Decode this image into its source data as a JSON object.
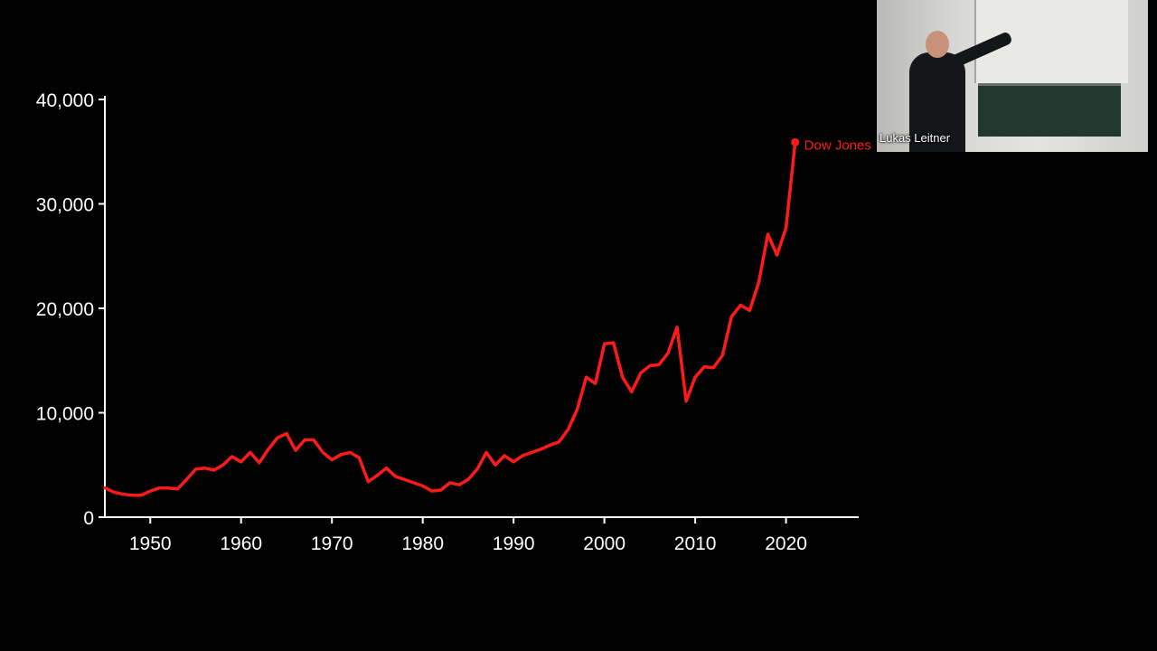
{
  "chart_data": {
    "type": "line",
    "title": "",
    "xlabel": "",
    "ylabel": "",
    "xlim": [
      1945,
      2028
    ],
    "ylim": [
      0,
      40000
    ],
    "x_ticks": [
      1950,
      1960,
      1970,
      1980,
      1990,
      2000,
      2010,
      2020
    ],
    "x_tick_labels": [
      "1950",
      "1960",
      "1970",
      "1980",
      "1990",
      "2000",
      "2010",
      "2020"
    ],
    "y_ticks": [
      0,
      10000,
      20000,
      30000,
      40000
    ],
    "y_tick_labels": [
      "0",
      "10,000",
      "20,000",
      "30,000",
      "40,000"
    ],
    "grid": false,
    "series": [
      {
        "name": "Dow Jones",
        "color": "#ff1a1a",
        "x": [
          1945,
          1946,
          1947,
          1948,
          1949,
          1950,
          1951,
          1952,
          1953,
          1954,
          1955,
          1956,
          1957,
          1958,
          1959,
          1960,
          1961,
          1962,
          1963,
          1964,
          1965,
          1966,
          1967,
          1968,
          1969,
          1970,
          1971,
          1972,
          1973,
          1974,
          1975,
          1976,
          1977,
          1978,
          1979,
          1980,
          1981,
          1982,
          1983,
          1984,
          1985,
          1986,
          1987,
          1988,
          1989,
          1990,
          1991,
          1992,
          1993,
          1994,
          1995,
          1996,
          1997,
          1998,
          1999,
          2000,
          2001,
          2002,
          2003,
          2004,
          2005,
          2006,
          2007,
          2008,
          2009,
          2010,
          2011,
          2012,
          2013,
          2014,
          2015,
          2016,
          2017,
          2018,
          2019,
          2020,
          2021
        ],
        "y": [
          2800,
          2400,
          2200,
          2100,
          2100,
          2500,
          2800,
          2800,
          2700,
          3600,
          4600,
          4700,
          4500,
          5000,
          5800,
          5300,
          6200,
          5200,
          6500,
          7600,
          8000,
          6400,
          7400,
          7400,
          6200,
          5500,
          6000,
          6200,
          5700,
          3400,
          4000,
          4700,
          3900,
          3600,
          3300,
          3000,
          2500,
          2600,
          3300,
          3100,
          3600,
          4600,
          6200,
          5000,
          5900,
          5300,
          5900,
          6200,
          6500,
          6900,
          7200,
          8400,
          10300,
          13400,
          12800,
          16600,
          16700,
          13400,
          12000,
          13800,
          14500,
          14600,
          15700,
          18200,
          11100,
          13400,
          14400,
          14300,
          15500,
          19200,
          20300,
          19800,
          22500,
          27100,
          25100,
          27700,
          35900
        ]
      }
    ],
    "annotations": [
      {
        "text": "Dow Jones",
        "x": 2021,
        "y": 35900,
        "color": "#ff1a1a"
      }
    ]
  },
  "video_tile": {
    "name": "Lukas Leitner"
  }
}
